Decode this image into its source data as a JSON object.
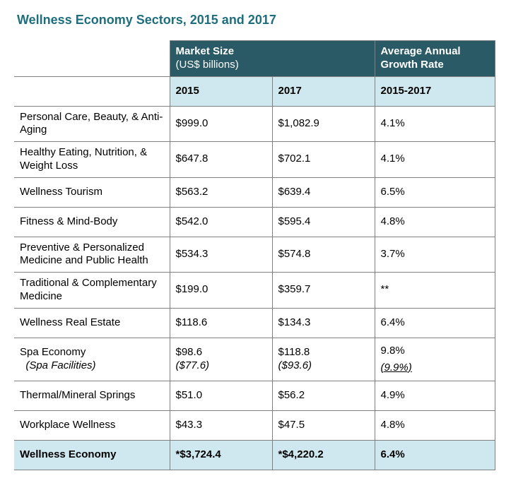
{
  "title": "Wellness Economy Sectors, 2015 and 2017",
  "colors": {
    "title": "#1e6e7d",
    "header_dark_bg": "#2a5a66",
    "header_light_bg": "#cfe7ee",
    "total_bg": "#cfe7ee",
    "border": "#808080",
    "text": "#1a1a1a"
  },
  "header": {
    "market_size_label": "Market Size",
    "market_size_sub": "(US$ billions)",
    "growth_label": "Average Annual Growth Rate",
    "col_2015": "2015",
    "col_2017": "2017",
    "growth_period": "2015-2017"
  },
  "rows": [
    {
      "sector": "Personal Care, Beauty, & Anti-Aging",
      "v2015": "$999.0",
      "v2017": "$1,082.9",
      "growth": "4.1%"
    },
    {
      "sector": "Healthy Eating, Nutrition, & Weight Loss",
      "v2015": "$647.8",
      "v2017": "$702.1",
      "growth": "4.1%"
    },
    {
      "sector": "Wellness Tourism",
      "v2015": "$563.2",
      "v2017": "$639.4",
      "growth": "6.5%"
    },
    {
      "sector": "Fitness & Mind-Body",
      "v2015": "$542.0",
      "v2017": "$595.4",
      "growth": "4.8%"
    },
    {
      "sector": "Preventive & Personalized Medicine and Public Health",
      "v2015": "$534.3",
      "v2017": "$574.8",
      "growth": "3.7%"
    },
    {
      "sector": "Traditional & Complementary Medicine",
      "v2015": "$199.0",
      "v2017": "$359.7",
      "growth": "**"
    },
    {
      "sector": "Wellness Real Estate",
      "v2015": "$118.6",
      "v2017": "$134.3",
      "growth": "6.4%"
    },
    {
      "sector": "Thermal/Mineral Springs",
      "v2015": "$51.0",
      "v2017": "$56.2",
      "growth": "4.9%"
    },
    {
      "sector": "Workplace Wellness",
      "v2015": "$43.3",
      "v2017": "$47.5",
      "growth": "4.8%"
    }
  ],
  "spa_row": {
    "sector_main": "Spa Economy",
    "sector_sub": "(Spa Facilities)",
    "v2015_main": "$98.6",
    "v2015_sub": "($77.6)",
    "v2017_main": "$118.8",
    "v2017_sub": "($93.6)",
    "growth_main": "9.8%",
    "growth_sub": "(9.9%)"
  },
  "total": {
    "label": "Wellness Economy",
    "v2015": "*$3,724.4",
    "v2017": "*$4,220.2",
    "growth": "6.4%"
  }
}
